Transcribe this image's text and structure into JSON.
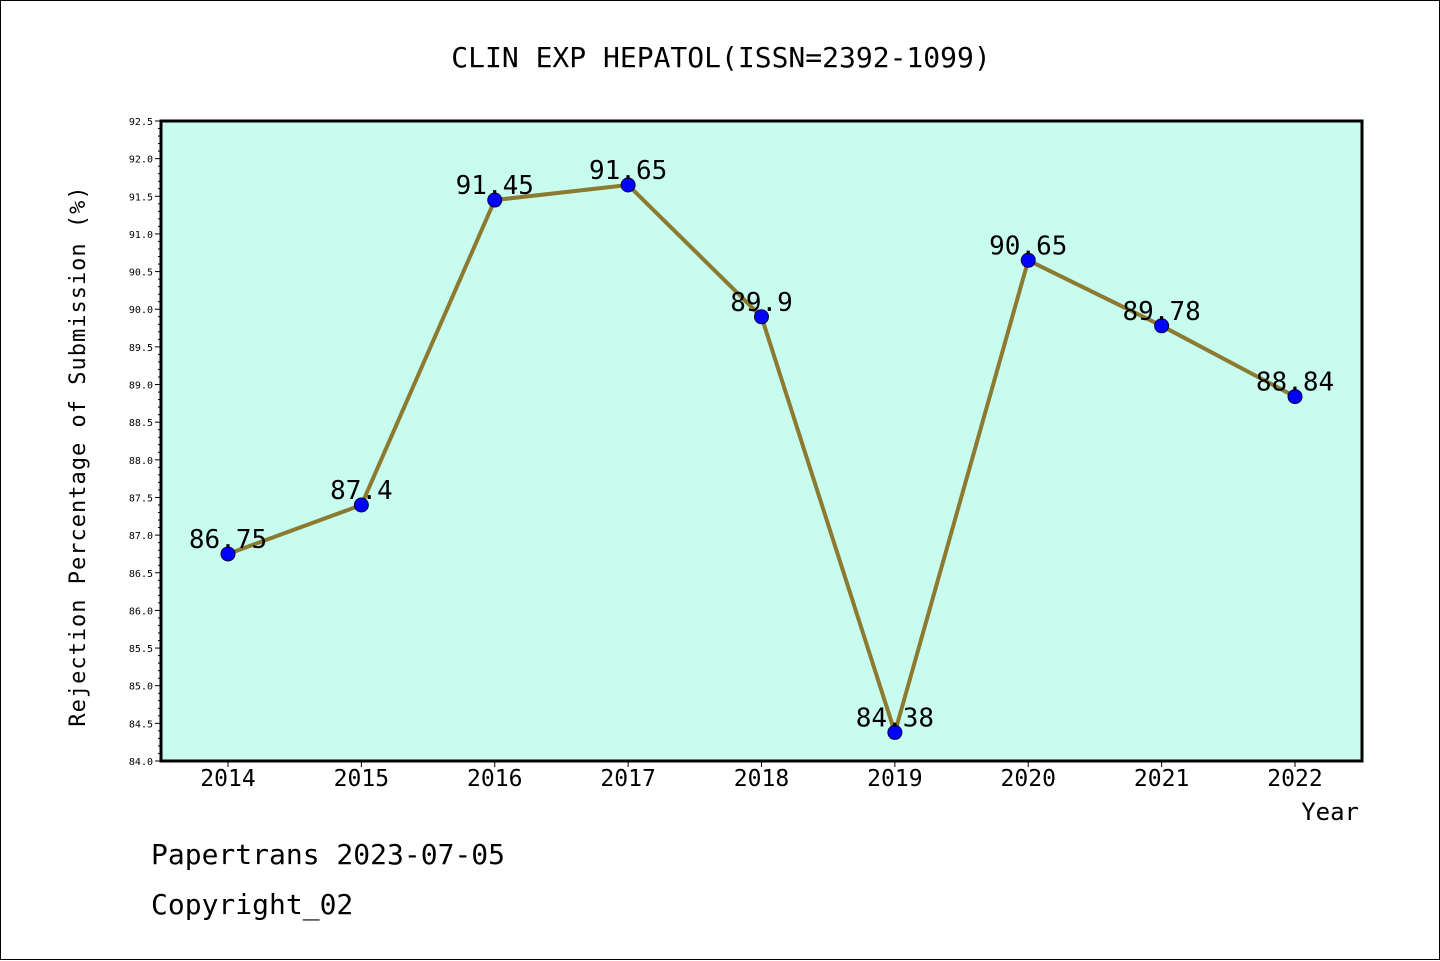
{
  "chart_data": {
    "type": "line",
    "title": "CLIN EXP HEPATOL(ISSN=2392-1099)",
    "xlabel": "Year",
    "ylabel": "Rejection Percentage of Submission (%)",
    "categories": [
      "2014",
      "2015",
      "2016",
      "2017",
      "2018",
      "2019",
      "2020",
      "2021",
      "2022"
    ],
    "values": [
      86.75,
      87.4,
      91.45,
      91.65,
      89.9,
      84.38,
      90.65,
      89.78,
      88.84
    ],
    "data_labels": [
      "86.75",
      "87.4",
      "91.45",
      "91.65",
      "89.9",
      "84.38",
      "90.65",
      "89.78",
      "88.84"
    ],
    "ylim": [
      84.0,
      92.5
    ],
    "yticks": [
      "84.0",
      "84.5",
      "85.0",
      "85.5",
      "86.0",
      "86.5",
      "87.0",
      "87.5",
      "88.0",
      "88.5",
      "89.0",
      "89.5",
      "90.0",
      "90.5",
      "91.0",
      "91.5",
      "92.0",
      "92.5"
    ],
    "grid": false,
    "legend": "none",
    "colors": {
      "plot_background": "#c8fcee",
      "line": "#8b7a30",
      "marker": "#0000ff"
    }
  },
  "footer": {
    "line1": "Papertrans 2023-07-05",
    "line2": "Copyright_02"
  }
}
